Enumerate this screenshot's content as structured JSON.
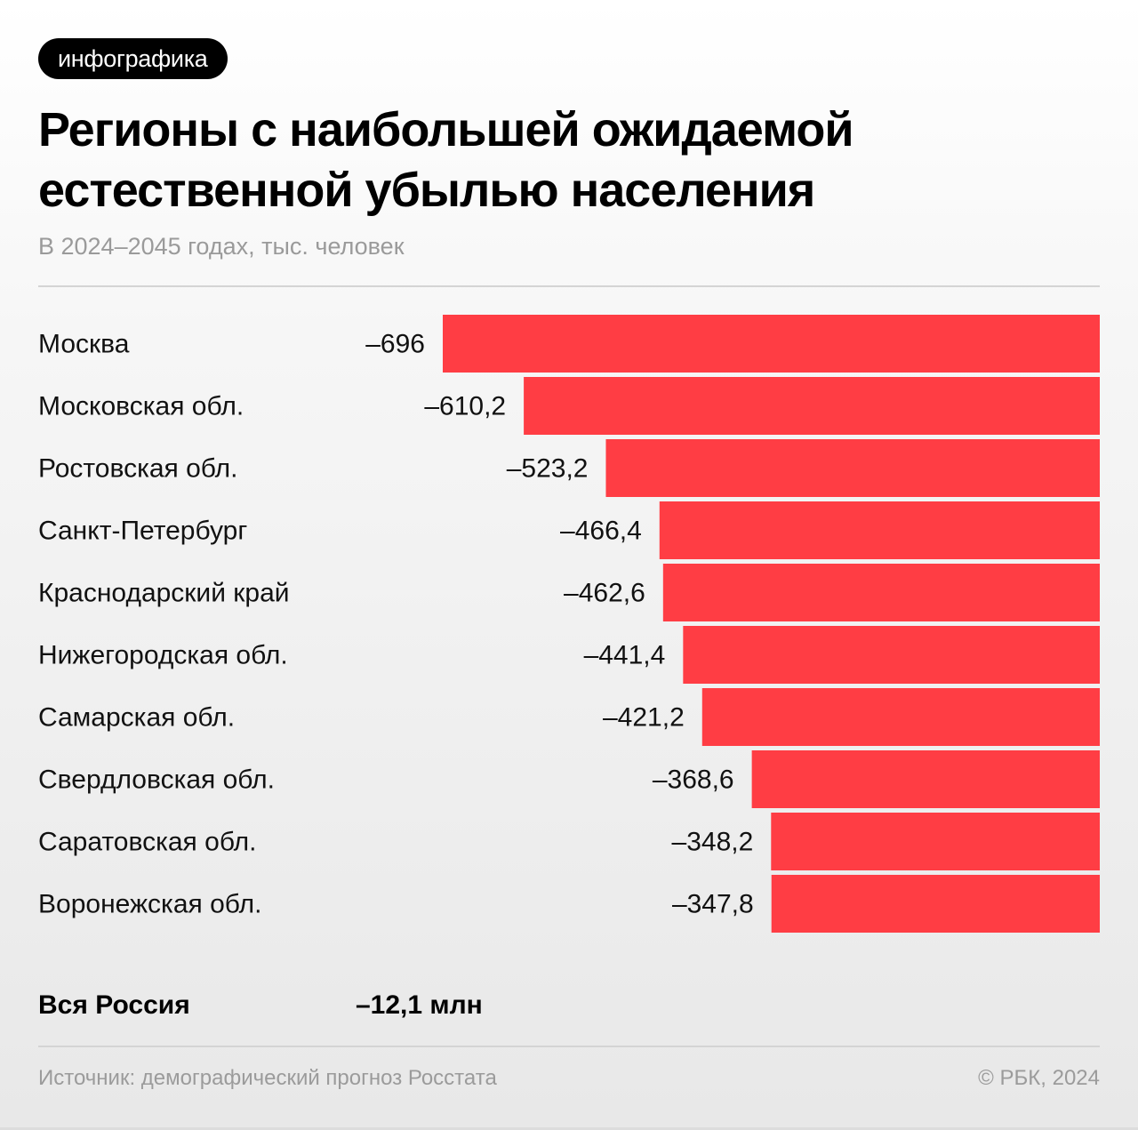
{
  "badge": "инфографика",
  "title": "Регионы с наибольшей ожидаемой естественной убылью населения",
  "subtitle": "В 2024–2045 годах, тыс. человек",
  "total": {
    "label": "Вся Россия",
    "value": "–12,1 млн"
  },
  "footer": {
    "source": "Источник: демографический прогноз Росстата",
    "copyright": "© РБК, 2024"
  },
  "colors": {
    "bar": "#FF3D44",
    "text": "#111111",
    "muted": "#9B9B9B"
  },
  "chart_data": {
    "type": "bar",
    "orientation": "horizontal",
    "title": "Регионы с наибольшей ожидаемой естественной убылью населения",
    "subtitle": "В 2024–2045 годах, тыс. человек",
    "xlabel": "",
    "ylabel": "",
    "grid": false,
    "legend": "none",
    "categories": [
      "Москва",
      "Московская обл.",
      "Ростовская обл.",
      "Санкт-Петербург",
      "Краснодарский край",
      "Нижегородская обл.",
      "Самарская обл.",
      "Свердловская обл.",
      "Саратовская обл.",
      "Воронежская обл."
    ],
    "values": [
      -696,
      -610.2,
      -523.2,
      -466.4,
      -462.6,
      -441.4,
      -421.2,
      -368.6,
      -348.2,
      -347.8
    ],
    "value_labels": [
      "–696",
      "–610,2",
      "–523,2",
      "–466,4",
      "–462,6",
      "–441,4",
      "–421,2",
      "–368,6",
      "–348,2",
      "–347,8"
    ],
    "xlim": [
      -696,
      0
    ],
    "unit": "тыс. человек"
  }
}
